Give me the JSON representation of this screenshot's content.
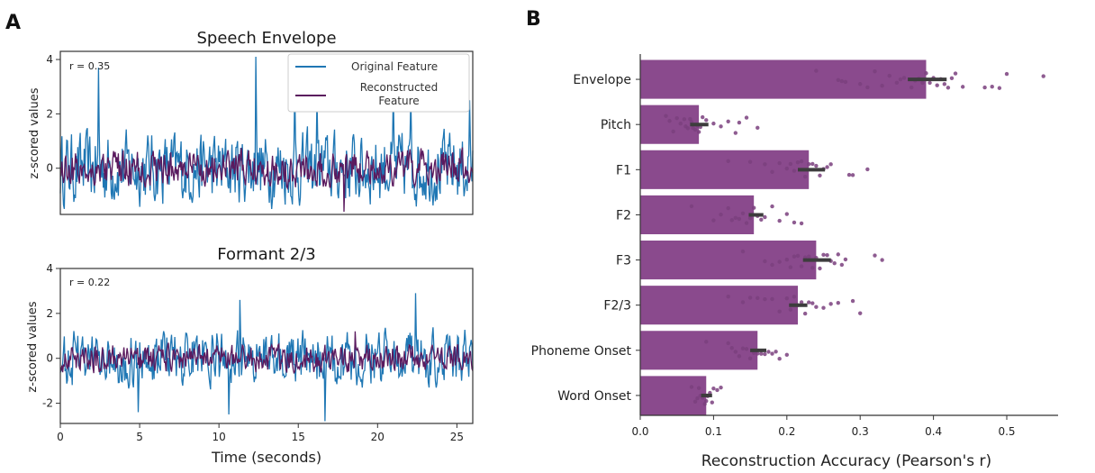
{
  "panels": {
    "a": "A",
    "b": "B"
  },
  "chart_data": [
    {
      "type": "line",
      "title": "Speech Envelope",
      "annotation": "r = 0.35",
      "ylabel": "z-scored values",
      "xlim": [
        0,
        26
      ],
      "ylim": [
        -1.7,
        4.3
      ],
      "yticks": [
        0,
        2,
        4
      ],
      "legend": {
        "placement": "top-right",
        "entries": [
          "Original Feature",
          "Reconstructed Feature"
        ]
      },
      "series": [
        {
          "name": "Original Feature",
          "color": "#1f77b4",
          "amplitude": 1.1,
          "peaks": [
            [
              2.4,
              3.7
            ],
            [
              12.3,
              4.1
            ],
            [
              14.8,
              3.0
            ],
            [
              16.2,
              2.6
            ],
            [
              21.0,
              2.9
            ],
            [
              22.1,
              2.6
            ],
            [
              25.8,
              2.5
            ]
          ]
        },
        {
          "name": "Reconstructed Feature",
          "color": "#5b1a5e",
          "amplitude": 0.55,
          "peaks": [
            [
              17.9,
              -1.6
            ]
          ]
        }
      ]
    },
    {
      "type": "line",
      "title": "Formant 2/3",
      "annotation": "r = 0.22",
      "ylabel": "z-scored values",
      "xlabel": "Time (seconds)",
      "xlim": [
        0,
        26
      ],
      "ylim": [
        -2.9,
        4.0
      ],
      "yticks": [
        -2,
        0,
        2,
        4
      ],
      "xticks": [
        0,
        5,
        10,
        15,
        20,
        25
      ],
      "series": [
        {
          "name": "Original Feature",
          "color": "#1f77b4",
          "amplitude": 1.0,
          "peaks": [
            [
              11.3,
              2.6
            ],
            [
              22.4,
              2.9
            ],
            [
              16.7,
              -2.8
            ],
            [
              4.9,
              -2.4
            ],
            [
              10.6,
              -2.5
            ]
          ]
        },
        {
          "name": "Reconstructed Feature",
          "color": "#5b1a5e",
          "amplitude": 0.5,
          "peaks": [
            [
              18.6,
              1.2
            ]
          ]
        }
      ]
    },
    {
      "type": "bar",
      "orientation": "horizontal",
      "xlabel": "Reconstruction Accuracy (Pearson's r)",
      "xlim": [
        0,
        0.57
      ],
      "xticks": [
        "0.0",
        "0.1",
        "0.2",
        "0.3",
        "0.4",
        "0.5"
      ],
      "bar_color": "#8a4a8d",
      "point_color": "#7a3f7e",
      "categories": [
        "Envelope",
        "Pitch",
        "F1",
        "F2",
        "F3",
        "F2/3",
        "Phoneme Onset",
        "Word Onset"
      ],
      "values": [
        0.39,
        0.08,
        0.23,
        0.155,
        0.24,
        0.215,
        0.16,
        0.09
      ],
      "ci_low": [
        0.365,
        0.068,
        0.215,
        0.148,
        0.222,
        0.203,
        0.15,
        0.083
      ],
      "ci_high": [
        0.418,
        0.093,
        0.252,
        0.168,
        0.26,
        0.228,
        0.172,
        0.098
      ],
      "points": [
        [
          0.24,
          0.27,
          0.275,
          0.28,
          0.3,
          0.31,
          0.32,
          0.33,
          0.34,
          0.35,
          0.355,
          0.36,
          0.37,
          0.375,
          0.38,
          0.385,
          0.39,
          0.395,
          0.4,
          0.405,
          0.41,
          0.415,
          0.42,
          0.425,
          0.43,
          0.44,
          0.47,
          0.48,
          0.49,
          0.5,
          0.55
        ],
        [
          0.035,
          0.04,
          0.045,
          0.05,
          0.055,
          0.06,
          0.062,
          0.065,
          0.068,
          0.07,
          0.072,
          0.075,
          0.078,
          0.08,
          0.082,
          0.085,
          0.09,
          0.1,
          0.11,
          0.12,
          0.13,
          0.135,
          0.145,
          0.16
        ],
        [
          0.12,
          0.15,
          0.17,
          0.18,
          0.19,
          0.2,
          0.205,
          0.21,
          0.215,
          0.22,
          0.225,
          0.23,
          0.235,
          0.24,
          0.245,
          0.25,
          0.255,
          0.26,
          0.285,
          0.29,
          0.31
        ],
        [
          0.07,
          0.1,
          0.11,
          0.12,
          0.125,
          0.13,
          0.135,
          0.14,
          0.145,
          0.15,
          0.155,
          0.16,
          0.165,
          0.17,
          0.18,
          0.19,
          0.2,
          0.21,
          0.22
        ],
        [
          0.14,
          0.17,
          0.18,
          0.19,
          0.2,
          0.205,
          0.21,
          0.215,
          0.22,
          0.225,
          0.23,
          0.235,
          0.24,
          0.245,
          0.25,
          0.255,
          0.26,
          0.265,
          0.27,
          0.275,
          0.28,
          0.32,
          0.33
        ],
        [
          0.12,
          0.14,
          0.15,
          0.16,
          0.17,
          0.18,
          0.19,
          0.2,
          0.205,
          0.21,
          0.215,
          0.22,
          0.225,
          0.23,
          0.235,
          0.24,
          0.25,
          0.26,
          0.27,
          0.29,
          0.3
        ],
        [
          0.09,
          0.12,
          0.125,
          0.13,
          0.135,
          0.14,
          0.145,
          0.15,
          0.155,
          0.16,
          0.165,
          0.17,
          0.175,
          0.18,
          0.185,
          0.19,
          0.2
        ],
        [
          0.07,
          0.075,
          0.078,
          0.08,
          0.082,
          0.085,
          0.088,
          0.09,
          0.092,
          0.095,
          0.098,
          0.1,
          0.105,
          0.11
        ]
      ]
    }
  ]
}
